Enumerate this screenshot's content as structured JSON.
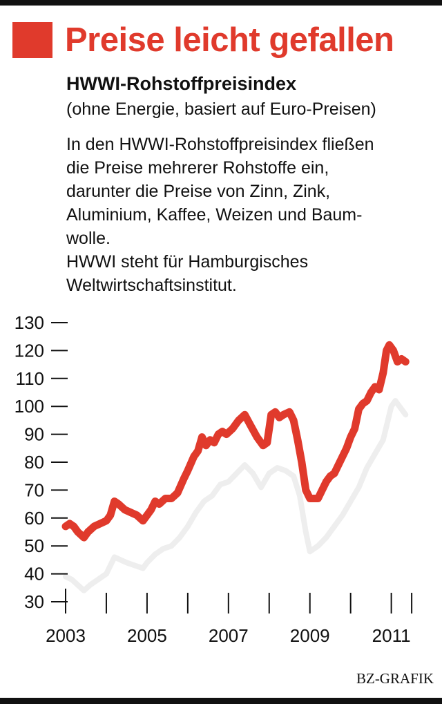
{
  "colors": {
    "accent": "#e03a2c",
    "secondary_line": "#eeeeee",
    "text": "#111111"
  },
  "header": {
    "title": "Preise leicht gefallen",
    "subtitle": "HWWI-Rohstoffpreisindex",
    "note": "(ohne Energie, basiert auf Euro-Preisen)",
    "description": [
      "In den HWWI-Rohstoffpreisindex fließen",
      "die Preise mehrerer Rohstoffe ein,",
      "darunter die Preise von Zinn, Zink,",
      "Aluminium, Kaffee, Weizen und Baum-",
      "wolle.",
      "HWWI steht für Hamburgisches",
      "Weltwirtschaftsinstitut."
    ]
  },
  "footer": {
    "credit": "BZ-GRAFIK"
  },
  "chart_data": {
    "type": "line",
    "ylim": [
      30,
      130
    ],
    "yticks": [
      30,
      40,
      50,
      60,
      70,
      80,
      90,
      100,
      110,
      120,
      130
    ],
    "xlim": [
      2003.0,
      2011.6
    ],
    "x_tick_labels": [
      "2003",
      "2005",
      "2007",
      "2009",
      "2011"
    ],
    "x_tick_positions": [
      2003,
      2004,
      2005,
      2006,
      2007,
      2008,
      2009,
      2010,
      2011,
      2011.5
    ],
    "grid": false,
    "series": [
      {
        "color": "#e03a2c",
        "points": [
          [
            2003.0,
            57
          ],
          [
            2003.1,
            58
          ],
          [
            2003.2,
            57
          ],
          [
            2003.3,
            55
          ],
          [
            2003.45,
            53
          ],
          [
            2003.55,
            55
          ],
          [
            2003.7,
            57
          ],
          [
            2003.85,
            58
          ],
          [
            2004.0,
            59
          ],
          [
            2004.1,
            61
          ],
          [
            2004.2,
            66
          ],
          [
            2004.3,
            65
          ],
          [
            2004.45,
            63
          ],
          [
            2004.6,
            62
          ],
          [
            2004.75,
            61
          ],
          [
            2004.9,
            59
          ],
          [
            2005.0,
            61
          ],
          [
            2005.1,
            63
          ],
          [
            2005.2,
            66
          ],
          [
            2005.3,
            65
          ],
          [
            2005.45,
            67
          ],
          [
            2005.6,
            67
          ],
          [
            2005.75,
            69
          ],
          [
            2005.9,
            74
          ],
          [
            2006.0,
            77
          ],
          [
            2006.15,
            82
          ],
          [
            2006.25,
            84
          ],
          [
            2006.35,
            89
          ],
          [
            2006.45,
            86
          ],
          [
            2006.55,
            88
          ],
          [
            2006.65,
            87
          ],
          [
            2006.75,
            90
          ],
          [
            2006.85,
            91
          ],
          [
            2006.95,
            90
          ],
          [
            2007.1,
            92
          ],
          [
            2007.25,
            95
          ],
          [
            2007.4,
            97
          ],
          [
            2007.55,
            93
          ],
          [
            2007.7,
            89
          ],
          [
            2007.85,
            86
          ],
          [
            2007.95,
            87
          ],
          [
            2008.05,
            97
          ],
          [
            2008.15,
            98
          ],
          [
            2008.25,
            96
          ],
          [
            2008.35,
            97
          ],
          [
            2008.5,
            98
          ],
          [
            2008.6,
            95
          ],
          [
            2008.7,
            88
          ],
          [
            2008.8,
            80
          ],
          [
            2008.9,
            70
          ],
          [
            2009.0,
            67
          ],
          [
            2009.1,
            67
          ],
          [
            2009.2,
            67
          ],
          [
            2009.3,
            70
          ],
          [
            2009.4,
            73
          ],
          [
            2009.5,
            75
          ],
          [
            2009.6,
            76
          ],
          [
            2009.7,
            79
          ],
          [
            2009.8,
            82
          ],
          [
            2009.9,
            85
          ],
          [
            2010.0,
            89
          ],
          [
            2010.1,
            92
          ],
          [
            2010.2,
            99
          ],
          [
            2010.3,
            101
          ],
          [
            2010.4,
            102
          ],
          [
            2010.5,
            105
          ],
          [
            2010.6,
            107
          ],
          [
            2010.7,
            106
          ],
          [
            2010.8,
            112
          ],
          [
            2010.88,
            120
          ],
          [
            2010.95,
            122
          ],
          [
            2011.05,
            120
          ],
          [
            2011.15,
            116
          ],
          [
            2011.25,
            117
          ],
          [
            2011.35,
            116
          ]
        ]
      },
      {
        "color": "#eeeeee",
        "points": [
          [
            2003.0,
            39
          ],
          [
            2003.15,
            38
          ],
          [
            2003.3,
            36
          ],
          [
            2003.45,
            34
          ],
          [
            2003.6,
            36
          ],
          [
            2003.8,
            38
          ],
          [
            2004.0,
            40
          ],
          [
            2004.2,
            46
          ],
          [
            2004.35,
            45
          ],
          [
            2004.5,
            44
          ],
          [
            2004.7,
            43
          ],
          [
            2004.9,
            42
          ],
          [
            2005.0,
            44
          ],
          [
            2005.2,
            47
          ],
          [
            2005.4,
            49
          ],
          [
            2005.6,
            50
          ],
          [
            2005.8,
            53
          ],
          [
            2006.0,
            57
          ],
          [
            2006.2,
            62
          ],
          [
            2006.4,
            66
          ],
          [
            2006.6,
            68
          ],
          [
            2006.8,
            72
          ],
          [
            2007.0,
            73
          ],
          [
            2007.2,
            76
          ],
          [
            2007.4,
            79
          ],
          [
            2007.6,
            76
          ],
          [
            2007.8,
            71
          ],
          [
            2008.0,
            76
          ],
          [
            2008.2,
            78
          ],
          [
            2008.4,
            77
          ],
          [
            2008.6,
            75
          ],
          [
            2008.75,
            68
          ],
          [
            2008.9,
            55
          ],
          [
            2009.0,
            48
          ],
          [
            2009.2,
            50
          ],
          [
            2009.4,
            53
          ],
          [
            2009.6,
            57
          ],
          [
            2009.8,
            61
          ],
          [
            2010.0,
            66
          ],
          [
            2010.2,
            71
          ],
          [
            2010.4,
            78
          ],
          [
            2010.6,
            83
          ],
          [
            2010.8,
            88
          ],
          [
            2011.0,
            100
          ],
          [
            2011.1,
            102
          ],
          [
            2011.2,
            100
          ],
          [
            2011.35,
            97
          ]
        ]
      }
    ]
  }
}
